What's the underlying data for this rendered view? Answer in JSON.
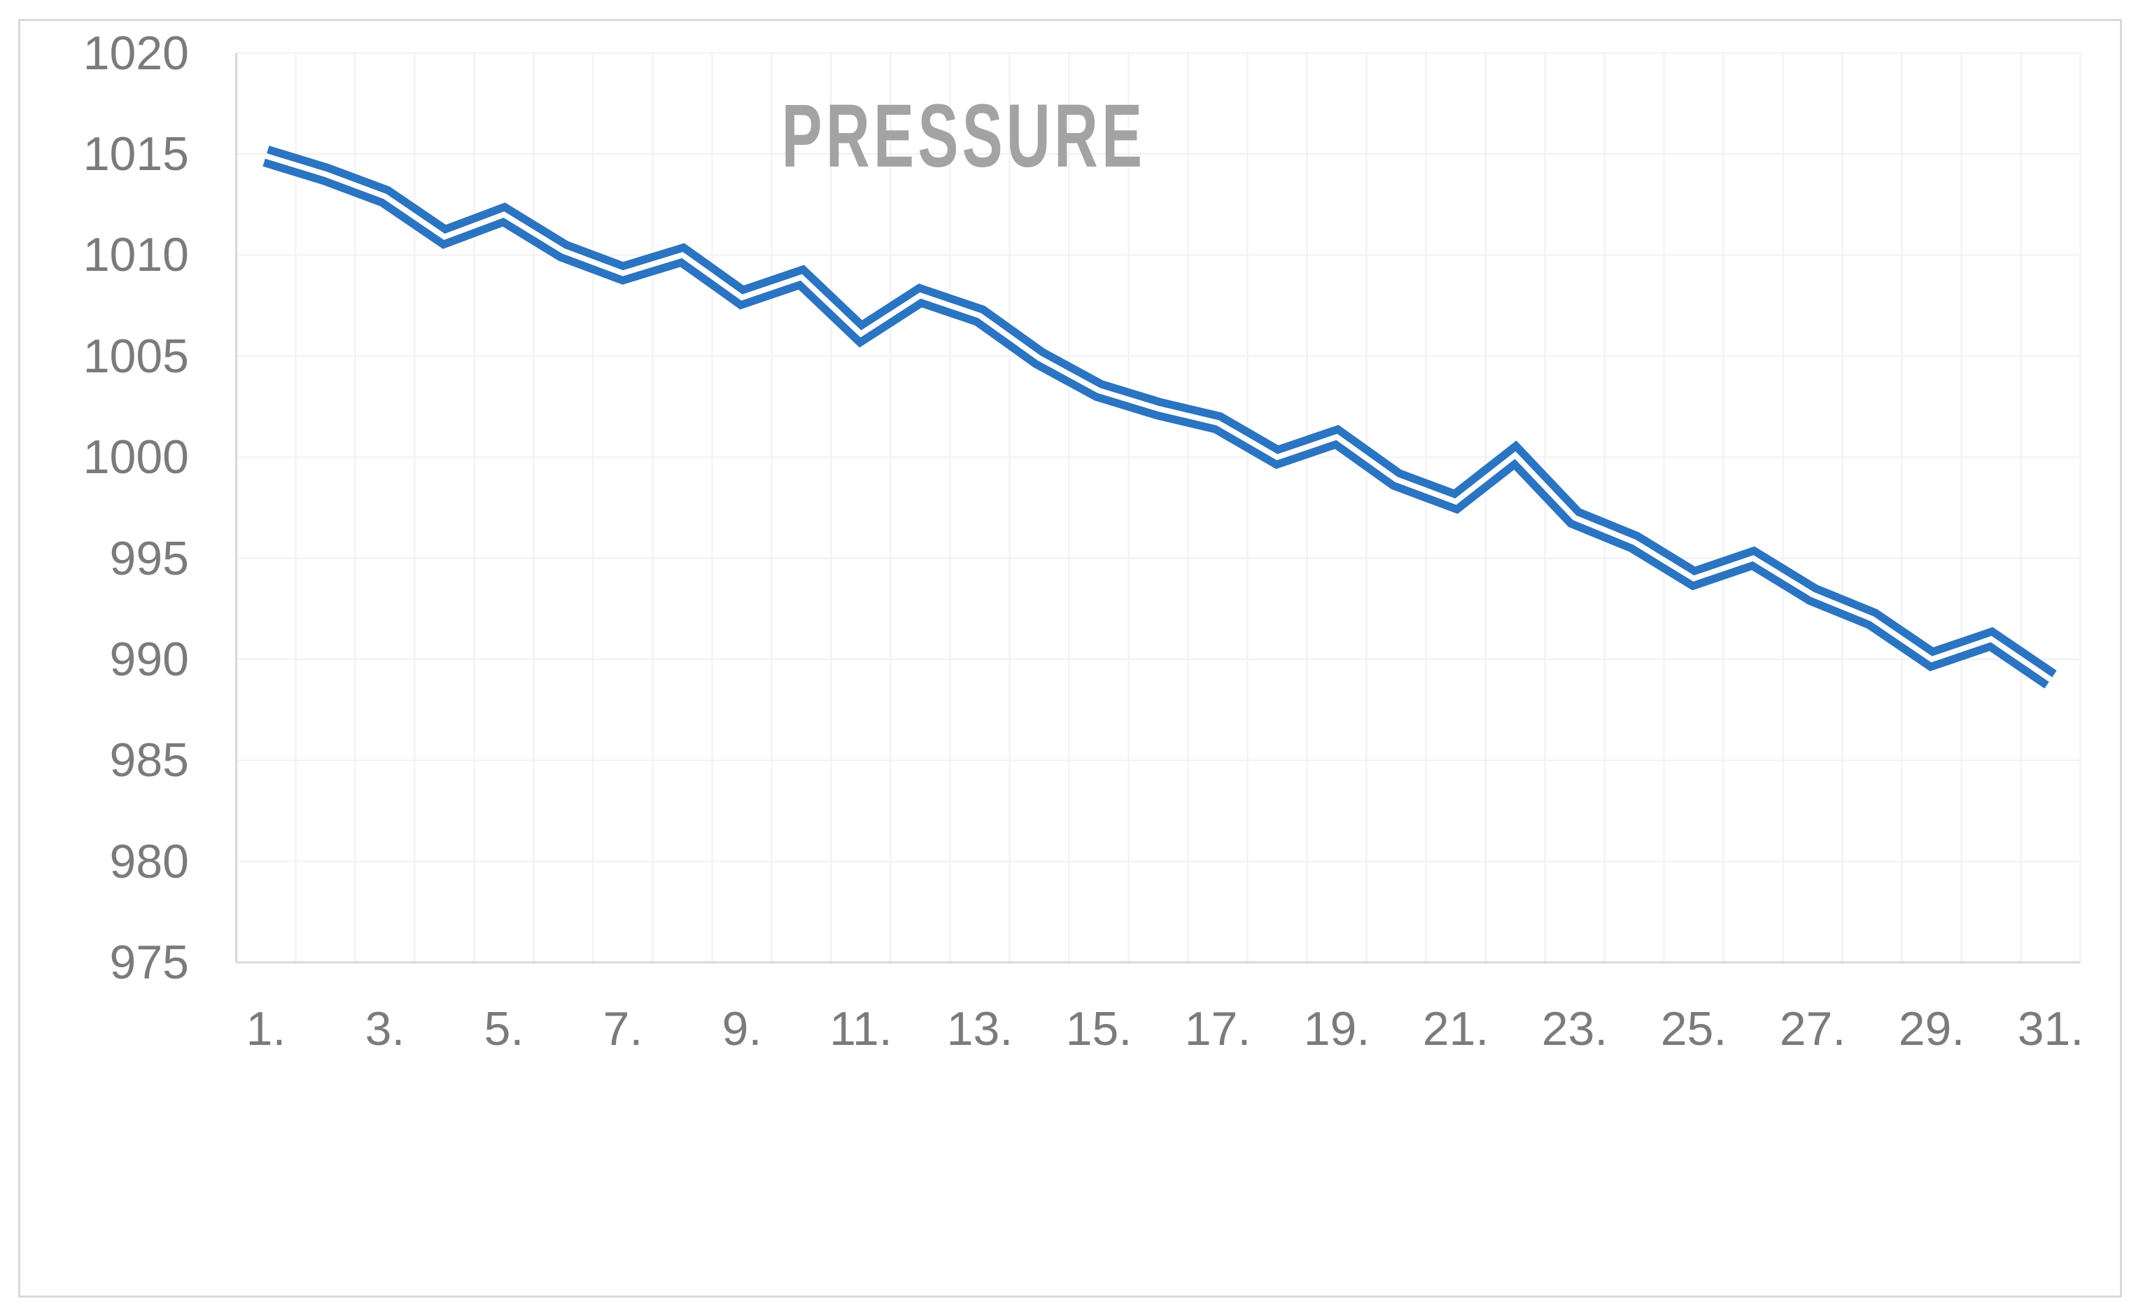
{
  "title": "PRESSURE",
  "colors": {
    "series_blue": "#2b74c1",
    "gridline": "#f1f1f1",
    "axis_line": "#d9d9d9",
    "chart_border": "#d9d9d9",
    "tick_text": "#7b7b7b",
    "title_text": "#a3a3a3",
    "background": "#ffffff"
  },
  "y_axis": {
    "tick_labels": [
      "1020",
      "1015",
      "1010",
      "1005",
      "1000",
      "995",
      "990",
      "985",
      "980",
      "975"
    ]
  },
  "x_axis": {
    "tick_labels": [
      "1.",
      "3.",
      "5.",
      "7.",
      "9.",
      "11.",
      "13.",
      "15.",
      "17.",
      "19.",
      "21.",
      "23.",
      "25.",
      "27.",
      "29.",
      "31."
    ],
    "tick_days": [
      1,
      3,
      5,
      7,
      9,
      11,
      13,
      15,
      17,
      19,
      21,
      23,
      25,
      27,
      29,
      31
    ]
  },
  "chart_data": {
    "type": "line",
    "title": "PRESSURE",
    "x": [
      1,
      2,
      3,
      4,
      5,
      6,
      7,
      8,
      9,
      10,
      11,
      12,
      13,
      14,
      15,
      16,
      17,
      18,
      19,
      20,
      21,
      22,
      23,
      24,
      25,
      26,
      27,
      28,
      29,
      30,
      31
    ],
    "values": [
      1014.9,
      1014.0,
      1012.9,
      1010.9,
      1012.0,
      1010.2,
      1009.1,
      1010.0,
      1007.9,
      1008.9,
      1006.1,
      1008.0,
      1007.0,
      1004.9,
      1003.3,
      1002.4,
      1001.7,
      1000.0,
      1001.0,
      998.9,
      997.8,
      1000.1,
      997.0,
      995.8,
      994.0,
      995.0,
      993.2,
      992.0,
      990.0,
      991.0,
      989.0
    ],
    "xlabel": "",
    "ylabel": "",
    "ylim": [
      975,
      1020
    ],
    "y_tick_step": 5,
    "grid": true,
    "legend": "none",
    "line_style": "double",
    "series_color": "#2b74c1"
  }
}
